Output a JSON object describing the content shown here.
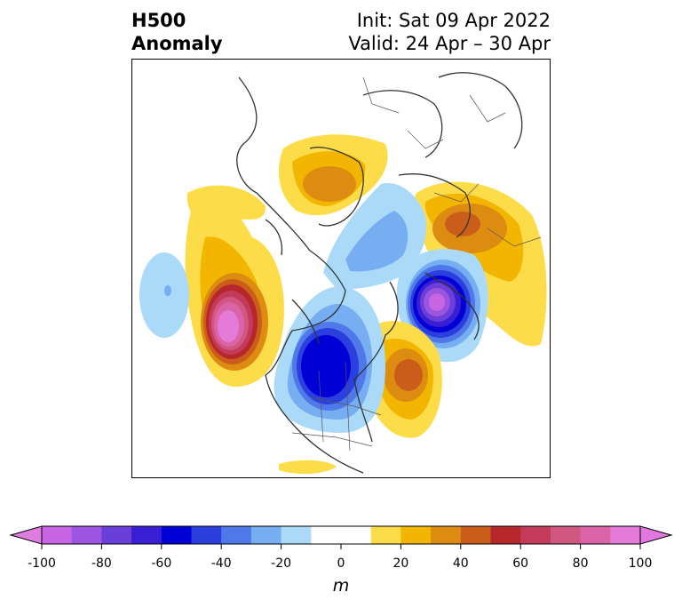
{
  "title": {
    "left_line1": "H500",
    "left_line2": "Anomaly",
    "right_line1": "Init: Sat 09 Apr 2022",
    "right_line2": "Valid: 24 Apr – 30 Apr"
  },
  "colorbar": {
    "unit": "m",
    "ticks": [
      "-100",
      "-80",
      "-60",
      "-40",
      "-20",
      "0",
      "20",
      "40",
      "60",
      "80",
      "100"
    ],
    "under_color": "#e07be0",
    "over_color": "#e377e0",
    "colors": [
      "#c765e5",
      "#9b55e0",
      "#6a3ed8",
      "#3a1ed4",
      "#0000d6",
      "#2a3fdd",
      "#4f78e8",
      "#77aef2",
      "#abdaf9",
      "#ffffff",
      "#ffffff",
      "#fddc49",
      "#f2b600",
      "#dd8c12",
      "#cb5d1b",
      "#b5272a",
      "#c43a5a",
      "#d0577f",
      "#db64a8",
      "#e57bd9"
    ]
  }
}
